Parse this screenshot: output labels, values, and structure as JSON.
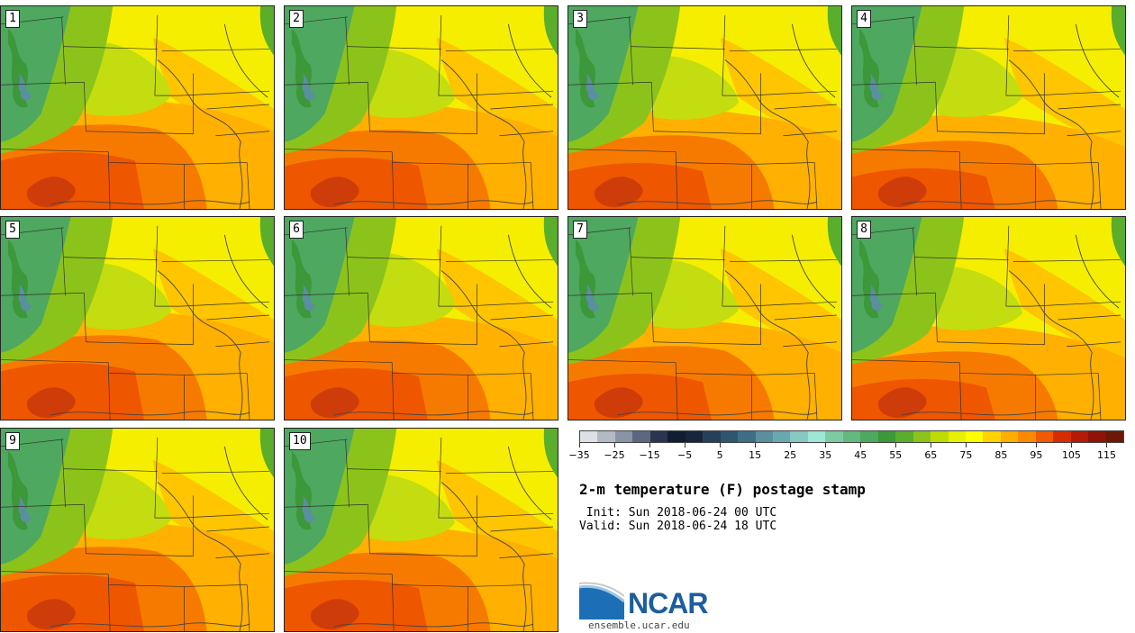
{
  "panels": [
    {
      "label": "1"
    },
    {
      "label": "2"
    },
    {
      "label": "3"
    },
    {
      "label": "4"
    },
    {
      "label": "5"
    },
    {
      "label": "6"
    },
    {
      "label": "7"
    },
    {
      "label": "8"
    },
    {
      "label": "9"
    },
    {
      "label": "10"
    }
  ],
  "colorbar": {
    "colors": [
      "#dde1e6",
      "#b4bac4",
      "#8b94a6",
      "#5d6780",
      "#2b3552",
      "#121c33",
      "#16263d",
      "#26405a",
      "#2f5670",
      "#3d6e85",
      "#5a8fa0",
      "#6aa8b0",
      "#86c8c2",
      "#9ee6d6",
      "#7ecb9f",
      "#65b87f",
      "#4ea85f",
      "#3c9838",
      "#5aae2c",
      "#8cc31b",
      "#bedc00",
      "#e6f000",
      "#ffff00",
      "#ffd300",
      "#ffae00",
      "#fb8a00",
      "#f05a00",
      "#d62d00",
      "#b51a05",
      "#8f1407",
      "#6d1806"
    ],
    "tick_labels": [
      "−35",
      "−25",
      "−15",
      "−5",
      "5",
      "15",
      "25",
      "35",
      "45",
      "55",
      "65",
      "75",
      "85",
      "95",
      "105",
      "115"
    ]
  },
  "title": "2-m temperature (F) postage stamp",
  "init": " Init: Sun 2018-06-24 00 UTC",
  "valid": "Valid: Sun 2018-06-24 18 UTC",
  "logo": {
    "text": "NCAR",
    "url": "ensemble.ucar.edu"
  }
}
